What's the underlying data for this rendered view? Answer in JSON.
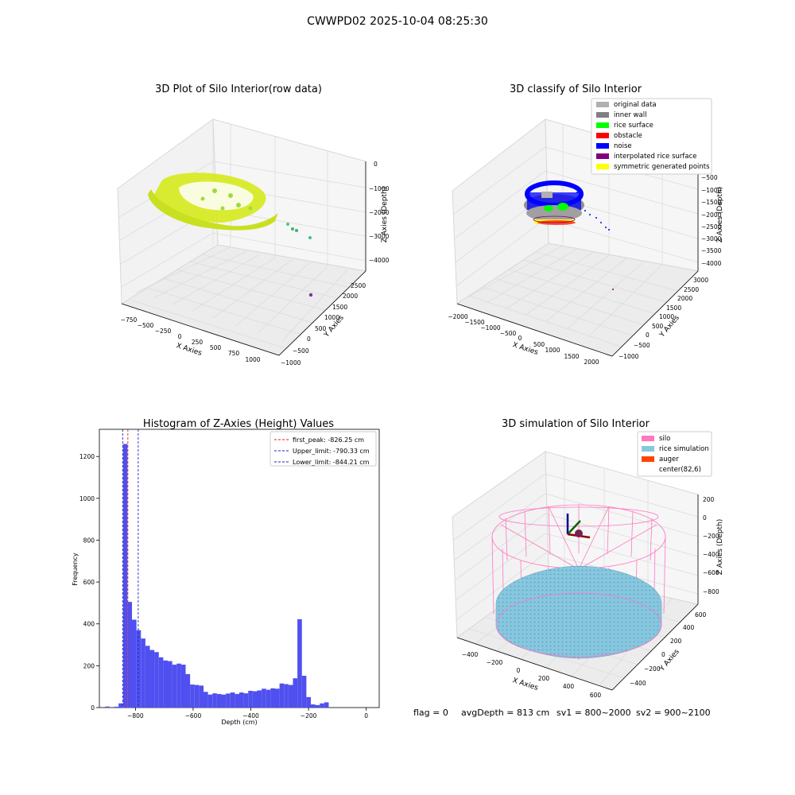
{
  "suptitle": "CWWPD02 2025-10-04 08:25:30",
  "colors": {
    "hist_bar": "#5050f0",
    "hist_first_peak": "#e02020",
    "hist_limits": "#2020c0",
    "silo_wire": "#ff77c2",
    "rice_surface": "#87c7e0",
    "auger": "#ff4500",
    "original": "#b0b0b0",
    "inner_wall": "#808080",
    "rice": "#00ff00",
    "obstacle": "#ff0000",
    "noise": "#0000ff",
    "interp": "#800080",
    "symmetric": "#ffff00",
    "grid": "#d8d8d8",
    "pane": "#f2f2f2"
  },
  "chart_data": [
    {
      "type": "scatter",
      "title": "3D Plot of Silo Interior(row data)",
      "xlabel": "X Axies",
      "ylabel": "Y Axies",
      "zlabel": "Z Axies (Depth)",
      "x_ticks": [
        "−750",
        "−500",
        "−250",
        "0",
        "250",
        "500",
        "750",
        "1000"
      ],
      "y_ticks": [
        "−1000",
        "−500",
        "0",
        "500",
        "1000",
        "1500",
        "2000",
        "2500"
      ],
      "z_ticks": [
        "0",
        "−1000",
        "−2000",
        "−3000",
        "−4000"
      ],
      "grid": true
    },
    {
      "type": "scatter",
      "title": "3D classify of Silo Interior",
      "xlabel": "X Axies",
      "ylabel": "Y Axies",
      "zlabel": "Z Axies (Depth)",
      "x_ticks": [
        "−2000",
        "−1500",
        "−1000",
        "−500",
        "0",
        "500",
        "1000",
        "1500",
        "2000"
      ],
      "y_ticks": [
        "−1000",
        "−500",
        "0",
        "500",
        "1000",
        "1500",
        "2000",
        "2500",
        "3000"
      ],
      "z_ticks": [
        "−500",
        "−1000",
        "−1500",
        "−2000",
        "−2500",
        "−3000",
        "−3500",
        "−4000"
      ],
      "legend_position": "top-right",
      "legend": [
        {
          "label": "original data",
          "color": "#b0b0b0"
        },
        {
          "label": "inner wall",
          "color": "#808080"
        },
        {
          "label": "rice surface",
          "color": "#00ff00"
        },
        {
          "label": "obstacle",
          "color": "#ff0000"
        },
        {
          "label": "noise",
          "color": "#0000ff"
        },
        {
          "label": "interpolated rice surface",
          "color": "#800080"
        },
        {
          "label": "symmetric generated points",
          "color": "#ffff00"
        }
      ],
      "grid": true
    },
    {
      "type": "bar",
      "title": "Histogram of Z-Axies (Height) Values",
      "xlabel": "Depth (cm)",
      "ylabel": "Frequency",
      "xlim": [
        -925,
        45
      ],
      "ylim": [
        0,
        1330
      ],
      "x_ticks": [
        -800,
        -600,
        -400,
        -200,
        0
      ],
      "y_ticks": [
        0,
        200,
        400,
        600,
        800,
        1000,
        1200
      ],
      "bin_start": -905,
      "bin_width": 15.5,
      "values": [
        5,
        0,
        4,
        20,
        1260,
        505,
        420,
        370,
        330,
        295,
        275,
        265,
        240,
        225,
        222,
        205,
        210,
        205,
        160,
        110,
        108,
        105,
        75,
        62,
        68,
        65,
        62,
        67,
        72,
        65,
        72,
        68,
        80,
        78,
        82,
        90,
        85,
        92,
        90,
        115,
        112,
        108,
        140,
        422,
        152,
        50,
        15,
        12,
        20,
        25
      ],
      "lines": [
        {
          "label": "first_peak: -826.25 cm",
          "x": -826.25,
          "color": "#e02020"
        },
        {
          "label": "Upper_limit: -790.33 cm",
          "x": -790.33,
          "color": "#2020c0"
        },
        {
          "label": "Lower_limit: -844.21 cm",
          "x": -844.21,
          "color": "#2020c0"
        }
      ],
      "legend_position": "top-right"
    },
    {
      "type": "scatter",
      "title": "3D simulation of Silo Interior",
      "xlabel": "X Axies",
      "ylabel": "Y Axies",
      "zlabel": "Z Axies (Depth)",
      "x_ticks": [
        "−400",
        "−200",
        "0",
        "200",
        "400",
        "600"
      ],
      "y_ticks": [
        "−400",
        "−200",
        "0",
        "200",
        "400",
        "600"
      ],
      "z_ticks": [
        "200",
        "0",
        "−200",
        "−400",
        "−600",
        "−800"
      ],
      "legend_position": "top-right",
      "legend": [
        {
          "label": "silo",
          "color": "#ff77c2"
        },
        {
          "label": "rice simulation",
          "color": "#87c7e0"
        },
        {
          "label": "auger",
          "color": "#ff4500"
        },
        {
          "label": "center(82,6)",
          "color": ""
        }
      ],
      "grid": true
    }
  ],
  "footer": {
    "flag": "flag = 0",
    "avg": "avgDepth = 813 cm",
    "sv1": "sv1 = 800~2000",
    "sv2": "sv2 = 900~2100"
  }
}
